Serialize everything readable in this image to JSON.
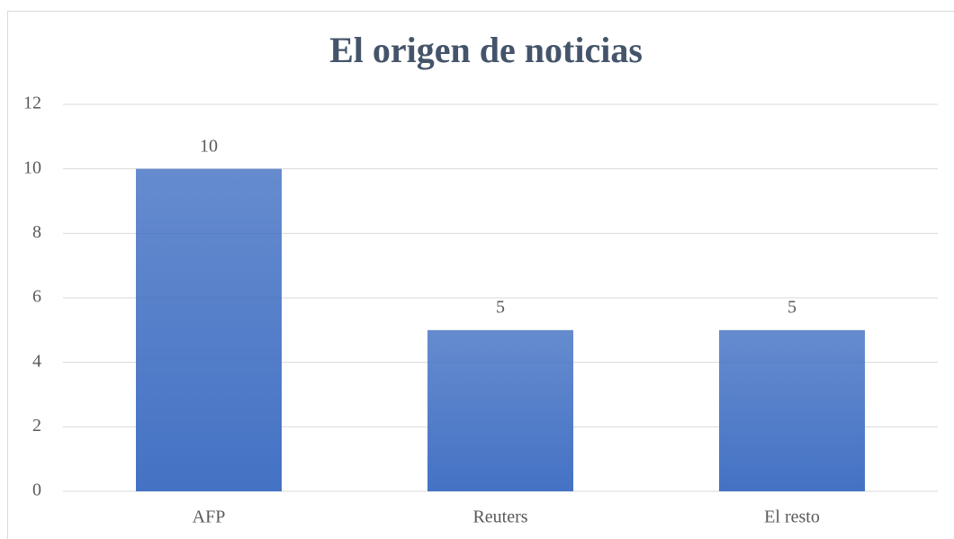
{
  "chart_data": {
    "type": "bar",
    "title": "El origen de noticias",
    "categories": [
      "AFP",
      "Reuters",
      "El resto"
    ],
    "values": [
      10,
      5,
      5
    ],
    "color": "#4472c4",
    "ylim": [
      0,
      12
    ],
    "yticks": [
      0,
      2,
      4,
      6,
      8,
      10,
      12
    ],
    "grid": true
  }
}
